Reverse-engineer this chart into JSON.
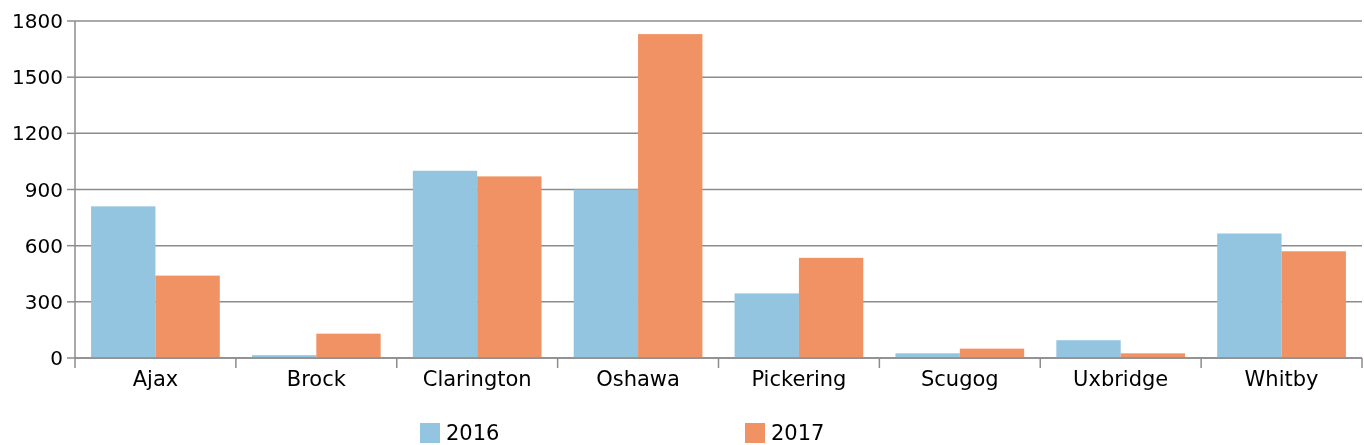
{
  "chart_data": {
    "type": "bar",
    "categories": [
      "Ajax",
      "Brock",
      "Clarington",
      "Oshawa",
      "Pickering",
      "Scugog",
      "Uxbridge",
      "Whitby"
    ],
    "series": [
      {
        "name": "2016",
        "color": "#93c4e0",
        "values": [
          810,
          15,
          1000,
          900,
          345,
          25,
          95,
          665
        ]
      },
      {
        "name": "2017",
        "color": "#f09264",
        "values": [
          440,
          130,
          970,
          1730,
          535,
          50,
          25,
          570
        ]
      }
    ],
    "ylim": [
      0,
      1800
    ],
    "yticks": [
      0,
      300,
      600,
      900,
      1200,
      1500,
      1800
    ],
    "grid": "y",
    "legend": "bottom"
  }
}
